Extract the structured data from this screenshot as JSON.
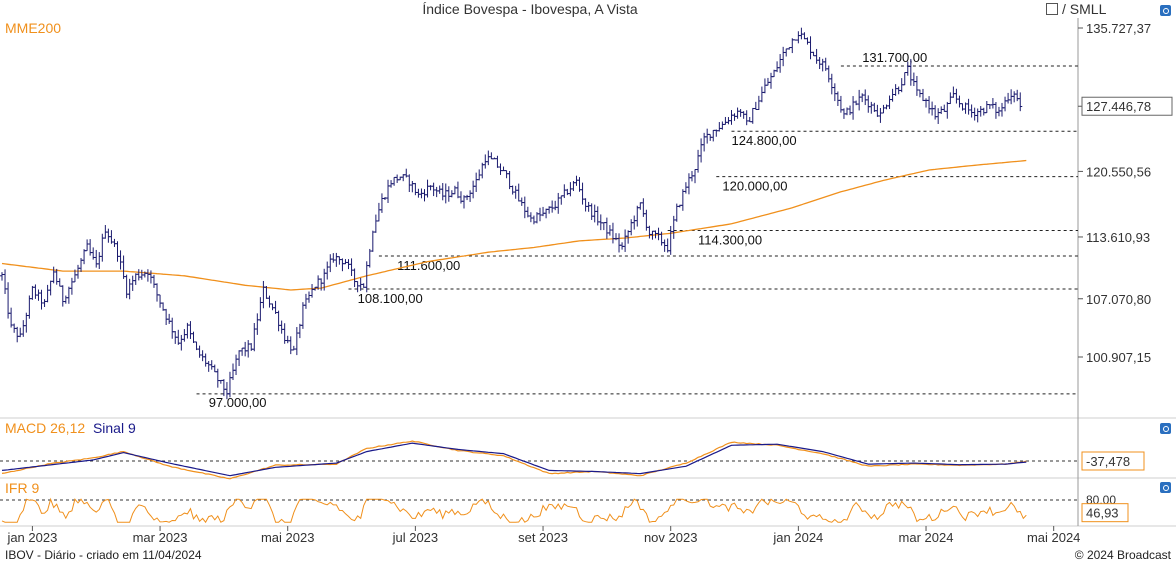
{
  "header": {
    "title": "Índice Bovespa - Ibovespa, A Vista",
    "scale_label": "/ SMLL"
  },
  "labels": {
    "mme": "MME200",
    "macd": "MACD 26,12",
    "signal": "Sinal 9",
    "ifr": "IFR 9"
  },
  "footer": {
    "left": "IBOV - Diário - criado em 11/04/2024",
    "right": "© 2024 Broadcast"
  },
  "colors": {
    "price": "#1a1a6e",
    "mme": "#f0901c",
    "macd": "#f0901c",
    "signal": "#1a1a8a",
    "ifr": "#f0901c"
  },
  "chart_data": {
    "type": "line",
    "title": "Índice Bovespa - Ibovespa, A Vista",
    "price_axis": {
      "ticks": [
        "135.727,37",
        "127.446,78",
        "120.550,56",
        "113.610,93",
        "107.070,80",
        "100.907,15"
      ],
      "tick_values": [
        135727.37,
        127446.78,
        120550.56,
        113610.93,
        107070.8,
        100907.15
      ],
      "ylim": [
        95000,
        137500
      ],
      "current_value": "127.446,78"
    },
    "levels": [
      {
        "label": "131.700,00",
        "value": 131700
      },
      {
        "label": "124.800,00",
        "value": 124800
      },
      {
        "label": "120.000,00",
        "value": 120000
      },
      {
        "label": "114.300,00",
        "value": 114300
      },
      {
        "label": "111.600,00",
        "value": 111600
      },
      {
        "label": "108.100,00",
        "value": 108100
      },
      {
        "label": "97.000,00",
        "value": 97000
      }
    ],
    "x_axis": {
      "ticks": [
        "jan 2023",
        "mar 2023",
        "mai 2023",
        "jul 2023",
        "set 2023",
        "nov 2023",
        "jan 2024",
        "mar 2024",
        "mai 2024"
      ],
      "tick_index": [
        10,
        52,
        94,
        136,
        178,
        220,
        262,
        304,
        346
      ],
      "n_days": 354
    },
    "price_keypoints": [
      [
        0,
        109500
      ],
      [
        3,
        104000
      ],
      [
        6,
        103000
      ],
      [
        10,
        108000
      ],
      [
        14,
        106500
      ],
      [
        17,
        110000
      ],
      [
        20,
        107000
      ],
      [
        24,
        109500
      ],
      [
        28,
        112500
      ],
      [
        31,
        110500
      ],
      [
        34,
        114500
      ],
      [
        38,
        112000
      ],
      [
        41,
        108000
      ],
      [
        44,
        109500
      ],
      [
        48,
        110000
      ],
      [
        51,
        107500
      ],
      [
        55,
        104500
      ],
      [
        58,
        102500
      ],
      [
        61,
        104000
      ],
      [
        64,
        101500
      ],
      [
        68,
        100000
      ],
      [
        72,
        98000
      ],
      [
        74,
        97200
      ],
      [
        78,
        101500
      ],
      [
        82,
        102000
      ],
      [
        86,
        108000
      ],
      [
        90,
        105500
      ],
      [
        93,
        103000
      ],
      [
        96,
        101500
      ],
      [
        99,
        106000
      ],
      [
        103,
        108500
      ],
      [
        106,
        109500
      ],
      [
        109,
        111500
      ],
      [
        113,
        111000
      ],
      [
        116,
        109000
      ],
      [
        119,
        108500
      ],
      [
        122,
        114500
      ],
      [
        125,
        117500
      ],
      [
        128,
        119500
      ],
      [
        131,
        120000
      ],
      [
        134,
        119500
      ],
      [
        137,
        118000
      ],
      [
        141,
        119000
      ],
      [
        145,
        118000
      ],
      [
        149,
        118500
      ],
      [
        152,
        117500
      ],
      [
        156,
        119500
      ],
      [
        159,
        122000
      ],
      [
        162,
        121500
      ],
      [
        166,
        120000
      ],
      [
        170,
        117500
      ],
      [
        174,
        115500
      ],
      [
        178,
        116000
      ],
      [
        182,
        117000
      ],
      [
        186,
        118500
      ],
      [
        189,
        119500
      ],
      [
        192,
        117000
      ],
      [
        196,
        115500
      ],
      [
        200,
        114000
      ],
      [
        204,
        112500
      ],
      [
        207,
        115000
      ],
      [
        210,
        117000
      ],
      [
        213,
        114000
      ],
      [
        216,
        113500
      ],
      [
        219,
        112500
      ],
      [
        222,
        116500
      ],
      [
        225,
        119000
      ],
      [
        228,
        121000
      ],
      [
        231,
        124000
      ],
      [
        234,
        124900
      ],
      [
        237,
        125500
      ],
      [
        240,
        126500
      ],
      [
        243,
        127000
      ],
      [
        245,
        125500
      ],
      [
        248,
        127500
      ],
      [
        251,
        129500
      ],
      [
        254,
        131000
      ],
      [
        257,
        133000
      ],
      [
        260,
        134500
      ],
      [
        262,
        135300
      ],
      [
        265,
        134000
      ],
      [
        268,
        132500
      ],
      [
        271,
        131500
      ],
      [
        274,
        129000
      ],
      [
        277,
        126500
      ],
      [
        280,
        127500
      ],
      [
        283,
        128500
      ],
      [
        286,
        127500
      ],
      [
        289,
        126500
      ],
      [
        292,
        128500
      ],
      [
        295,
        129500
      ],
      [
        298,
        131300
      ],
      [
        301,
        128800
      ],
      [
        304,
        128000
      ],
      [
        307,
        126500
      ],
      [
        310,
        127000
      ],
      [
        313,
        128500
      ],
      [
        316,
        127500
      ],
      [
        319,
        126800
      ],
      [
        322,
        127000
      ],
      [
        325,
        127500
      ],
      [
        328,
        126800
      ],
      [
        331,
        128500
      ],
      [
        333,
        129000
      ],
      [
        335,
        127400
      ]
    ],
    "mme200_keypoints": [
      [
        0,
        110800
      ],
      [
        20,
        110000
      ],
      [
        40,
        110000
      ],
      [
        60,
        109500
      ],
      [
        80,
        108500
      ],
      [
        95,
        108000
      ],
      [
        105,
        108200
      ],
      [
        120,
        109500
      ],
      [
        140,
        111000
      ],
      [
        160,
        112000
      ],
      [
        175,
        112500
      ],
      [
        190,
        113200
      ],
      [
        205,
        113500
      ],
      [
        220,
        114000
      ],
      [
        240,
        115000
      ],
      [
        260,
        116700
      ],
      [
        275,
        118300
      ],
      [
        290,
        119600
      ],
      [
        305,
        120700
      ],
      [
        320,
        121200
      ],
      [
        337,
        121700
      ]
    ],
    "macd": {
      "series": [
        {
          "name": "MACD 26,12",
          "keypoints": [
            [
              0,
              -1200
            ],
            [
              15,
              -300
            ],
            [
              30,
              300
            ],
            [
              40,
              900
            ],
            [
              55,
              -500
            ],
            [
              75,
              -1700
            ],
            [
              90,
              -400
            ],
            [
              110,
              -300
            ],
            [
              120,
              1200
            ],
            [
              135,
              1900
            ],
            [
              150,
              1000
            ],
            [
              165,
              500
            ],
            [
              180,
              -1200
            ],
            [
              195,
              -1000
            ],
            [
              210,
              -1400
            ],
            [
              225,
              -200
            ],
            [
              240,
              1800
            ],
            [
              255,
              1500
            ],
            [
              270,
              700
            ],
            [
              285,
              -500
            ],
            [
              300,
              -300
            ],
            [
              315,
              -400
            ],
            [
              330,
              -300
            ],
            [
              337,
              -37.478
            ]
          ]
        },
        {
          "name": "Sinal 9",
          "keypoints": [
            [
              0,
              -900
            ],
            [
              15,
              -400
            ],
            [
              30,
              100
            ],
            [
              40,
              800
            ],
            [
              55,
              -200
            ],
            [
              75,
              -1400
            ],
            [
              90,
              -600
            ],
            [
              110,
              -200
            ],
            [
              120,
              900
            ],
            [
              135,
              1700
            ],
            [
              150,
              1100
            ],
            [
              165,
              700
            ],
            [
              180,
              -900
            ],
            [
              195,
              -1000
            ],
            [
              210,
              -1200
            ],
            [
              225,
              -500
            ],
            [
              240,
              1500
            ],
            [
              255,
              1600
            ],
            [
              270,
              900
            ],
            [
              285,
              -300
            ],
            [
              300,
              -200
            ],
            [
              315,
              -350
            ],
            [
              330,
              -300
            ],
            [
              337,
              -100
            ]
          ]
        }
      ],
      "current_value": "-37,478"
    },
    "ifr": {
      "ticks": [
        "80,00"
      ],
      "tick_values": [
        80
      ],
      "current_value": "46,93"
    }
  }
}
